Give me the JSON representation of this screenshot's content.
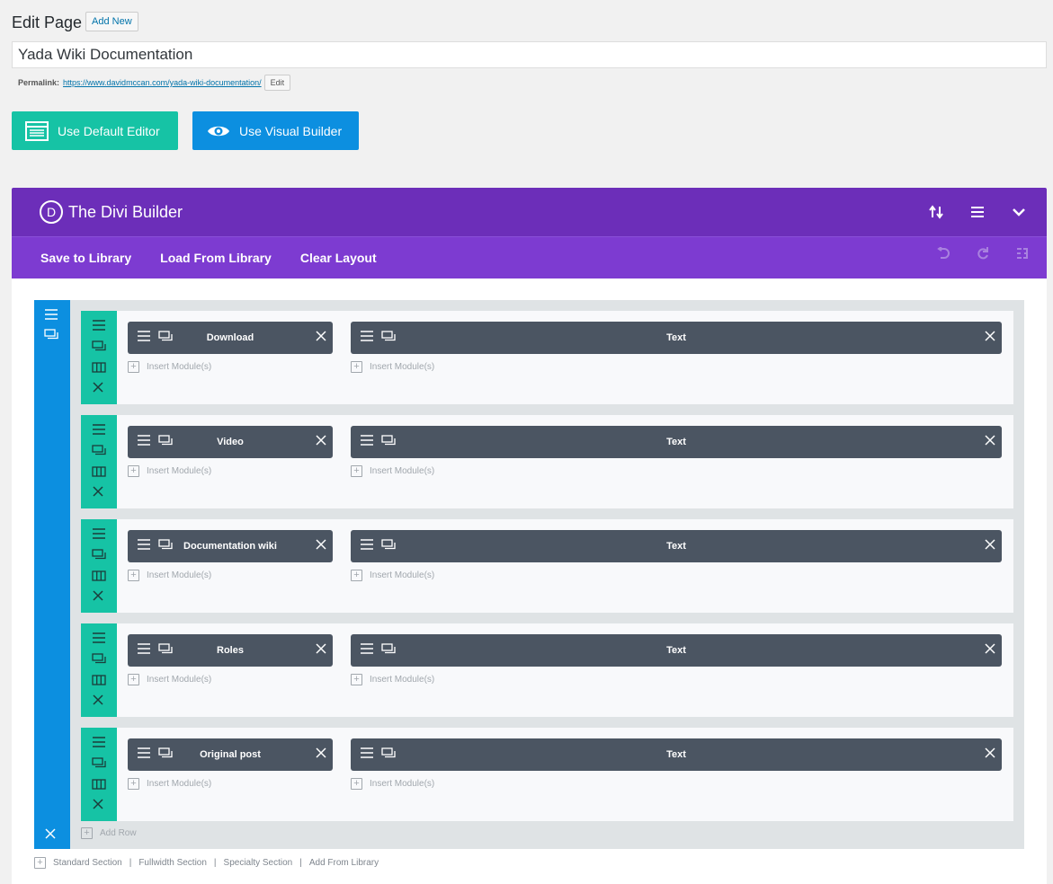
{
  "header": {
    "title": "Edit Page",
    "add_new": "Add New",
    "post_title": "Yada Wiki Documentation",
    "permalink_label": "Permalink:",
    "permalink_url": "https://www.davidmccan.com/yada-wiki-documentation/",
    "permalink_edit": "Edit"
  },
  "editor_buttons": {
    "default_editor": "Use Default Editor",
    "visual_builder": "Use Visual Builder"
  },
  "builder": {
    "logo_letter": "D",
    "title": "The Divi Builder",
    "toolbar": [
      "Save to Library",
      "Load From Library",
      "Clear Layout"
    ],
    "insert_label": "Insert Module(s)",
    "add_row": "Add Row",
    "rows": [
      {
        "left": "Download",
        "right": "Text"
      },
      {
        "left": "Video",
        "right": "Text"
      },
      {
        "left": "Documentation wiki",
        "right": "Text"
      },
      {
        "left": "Roles",
        "right": "Text"
      },
      {
        "left": "Original post",
        "right": "Text"
      }
    ],
    "footer": [
      "Standard Section",
      "Fullwidth Section",
      "Specialty Section",
      "Add From Library"
    ]
  },
  "colors": {
    "builder_header": "#6c2eb9",
    "builder_toolbar": "#7d3bd1",
    "section": "#0c8fe0",
    "row": "#16c3a5",
    "module": "#4b5562"
  }
}
